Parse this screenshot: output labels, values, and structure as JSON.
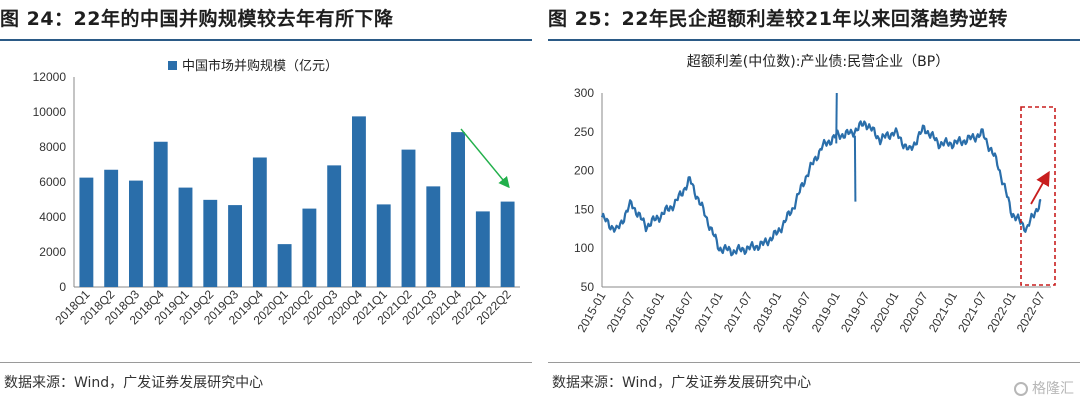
{
  "left": {
    "header": "图 24：22年的中国并购规模较去年有所下降",
    "source": "数据来源：Wind，广发证券发展研究中心"
  },
  "right": {
    "header": "图 25：22年民企超额利差较21年以来回落趋势逆转",
    "source": "数据来源：Wind，广发证券发展研究中心"
  },
  "watermark": "格隆汇",
  "colors": {
    "bar": "#2a6eaa",
    "line": "#2a6eaa",
    "green_arrow": "#22b04b",
    "red": "#c81e1e",
    "rule": "#2b5a86"
  },
  "chart_data": [
    {
      "type": "bar",
      "legend": "中国市场并购规模（亿元）",
      "categories": [
        "2018Q1",
        "2018Q2",
        "2018Q3",
        "2018Q4",
        "2019Q1",
        "2019Q2",
        "2019Q3",
        "2019Q4",
        "2020Q1",
        "2020Q2",
        "2020Q3",
        "2020Q4",
        "2021Q1",
        "2021Q2",
        "2021Q3",
        "2021Q4",
        "2022Q1",
        "2022Q2"
      ],
      "values": [
        6250,
        6700,
        6080,
        8300,
        5680,
        4980,
        4680,
        7400,
        2450,
        4480,
        6950,
        9750,
        4720,
        7850,
        5750,
        8850,
        4320,
        4880
      ],
      "ylim": [
        0,
        12000
      ],
      "yticks": [
        0,
        2000,
        4000,
        6000,
        8000,
        10000,
        12000
      ],
      "annotation": "green downward arrow after 2021Q4"
    },
    {
      "type": "line",
      "title": "超额利差(中位数):产业债:民营企业（BP）",
      "x": [
        "2015-01",
        "2015-04",
        "2015-07",
        "2015-10",
        "2016-01",
        "2016-04",
        "2016-07",
        "2016-10",
        "2017-01",
        "2017-04",
        "2017-07",
        "2017-10",
        "2018-01",
        "2018-04",
        "2018-07",
        "2018-10",
        "2019-01",
        "2019-04",
        "2019-07",
        "2019-10",
        "2020-01",
        "2020-04",
        "2020-07",
        "2020-10",
        "2021-01",
        "2021-04",
        "2021-07",
        "2021-10",
        "2022-01",
        "2022-04",
        "2022-07"
      ],
      "values": [
        140,
        122,
        158,
        128,
        142,
        158,
        188,
        145,
        100,
        96,
        100,
        105,
        120,
        150,
        195,
        230,
        245,
        248,
        262,
        240,
        250,
        225,
        255,
        235,
        235,
        240,
        248,
        210,
        145,
        125,
        162
      ],
      "xtick_labels": [
        "2015-01",
        "2015-07",
        "2016-01",
        "2016-07",
        "2017-01",
        "2017-07",
        "2018-01",
        "2018-07",
        "2019-01",
        "2019-07",
        "2020-01",
        "2020-07",
        "2021-01",
        "2021-07",
        "2022-01",
        "2022-07"
      ],
      "ylim": [
        50,
        300
      ],
      "yticks": [
        50,
        100,
        150,
        200,
        250,
        300
      ],
      "annotation": "red dashed box around 2022 with upward red arrow"
    }
  ]
}
